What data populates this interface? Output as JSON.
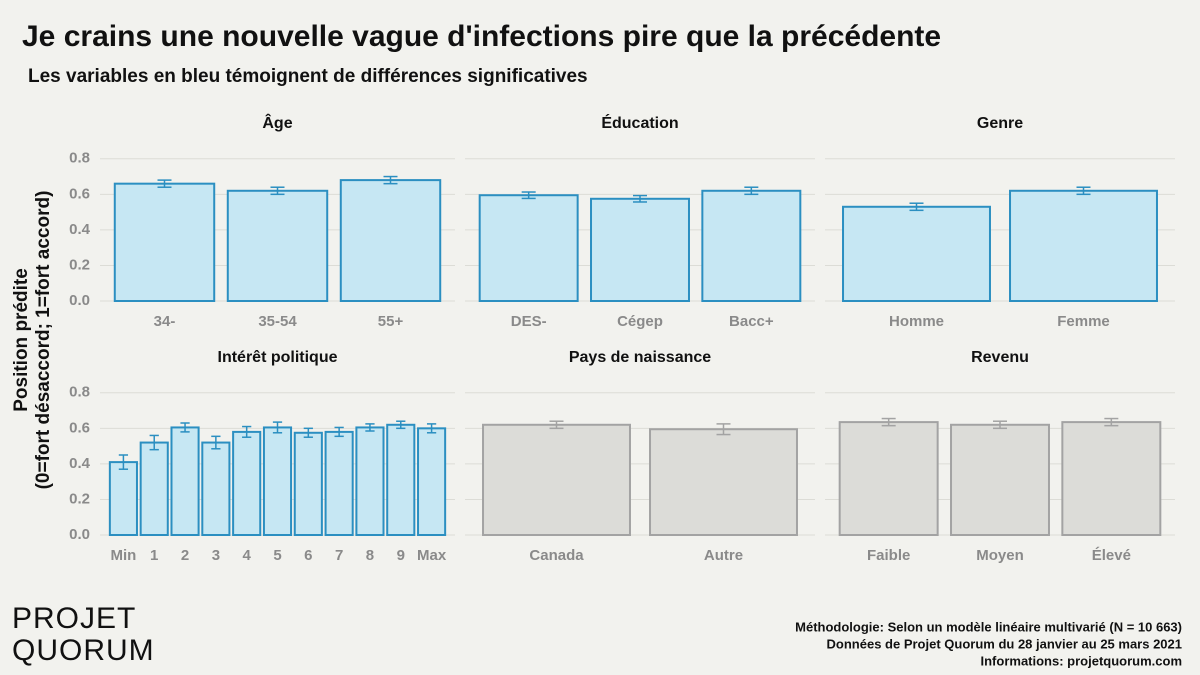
{
  "title": "Je crains une nouvelle vague d'infections pire que la précédente",
  "subtitle": "Les variables en bleu témoignent de différences significatives",
  "ylabel": [
    "Position prédite",
    "(0=fort désaccord; 1=fort accord)"
  ],
  "logo": [
    "PROJET",
    "QUORUM"
  ],
  "notes": [
    "Méthodologie: Selon un modèle linéaire multivarié (N = 10 663)",
    "Données de Projet Quorum du 28 janvier au 25 mars 2021",
    "Informations: projetquorum.com"
  ],
  "chart_data": [
    {
      "type": "bar",
      "title": "Âge",
      "categories": [
        "34-",
        "35-54",
        "55+"
      ],
      "values": [
        0.66,
        0.62,
        0.68
      ],
      "errors": [
        0.02,
        0.02,
        0.02
      ],
      "color": "#c6e7f3",
      "edgecolor": "#2b8fc1",
      "ylim": [
        0,
        0.9
      ],
      "yticks": [
        {
          "value": 0,
          "label": "0.0"
        },
        {
          "value": 0.2,
          "label": "0.2"
        },
        {
          "value": 0.4,
          "label": "0.4"
        },
        {
          "value": 0.6,
          "label": "0.6"
        },
        {
          "value": 0.8,
          "label": "0.8"
        }
      ],
      "grid": true
    },
    {
      "type": "bar",
      "title": "Éducation",
      "categories": [
        "DES-",
        "Cégep",
        "Bacc+"
      ],
      "values": [
        0.595,
        0.575,
        0.62
      ],
      "errors": [
        0.018,
        0.018,
        0.02
      ],
      "color": "#c6e7f3",
      "edgecolor": "#2b8fc1",
      "ylim": [
        0,
        0.9
      ],
      "yticks": [
        0,
        0.2,
        0.4,
        0.6,
        0.8
      ],
      "grid": true
    },
    {
      "type": "bar",
      "title": "Genre",
      "categories": [
        "Homme",
        "Femme"
      ],
      "values": [
        0.53,
        0.62
      ],
      "errors": [
        0.02,
        0.02
      ],
      "color": "#c6e7f3",
      "edgecolor": "#2b8fc1",
      "ylim": [
        0,
        0.9
      ],
      "yticks": [
        0,
        0.2,
        0.4,
        0.6,
        0.8
      ],
      "grid": true
    },
    {
      "type": "bar",
      "title": "Intérêt politique",
      "categories": [
        "Min",
        "1",
        "2",
        "3",
        "4",
        "5",
        "6",
        "7",
        "8",
        "9",
        "Max"
      ],
      "values": [
        0.41,
        0.52,
        0.605,
        0.52,
        0.58,
        0.605,
        0.575,
        0.58,
        0.605,
        0.62,
        0.6
      ],
      "errors": [
        0.04,
        0.04,
        0.025,
        0.035,
        0.03,
        0.03,
        0.025,
        0.025,
        0.02,
        0.02,
        0.025
      ],
      "color": "#c6e7f3",
      "edgecolor": "#2b8fc1",
      "ylim": [
        0,
        0.9
      ],
      "yticks": [
        {
          "value": 0,
          "label": "0.0"
        },
        {
          "value": 0.2,
          "label": "0.2"
        },
        {
          "value": 0.4,
          "label": "0.4"
        },
        {
          "value": 0.6,
          "label": "0.6"
        },
        {
          "value": 0.8,
          "label": "0.8"
        }
      ],
      "grid": true
    },
    {
      "type": "bar",
      "title": "Pays de naissance",
      "categories": [
        "Canada",
        "Autre"
      ],
      "values": [
        0.62,
        0.595
      ],
      "errors": [
        0.02,
        0.03
      ],
      "color": "#dcdcd8",
      "edgecolor": "#a3a3a3",
      "ylim": [
        0,
        0.9
      ],
      "yticks": [
        0,
        0.2,
        0.4,
        0.6,
        0.8
      ],
      "grid": true
    },
    {
      "type": "bar",
      "title": "Revenu",
      "categories": [
        "Faible",
        "Moyen",
        "Élevé"
      ],
      "values": [
        0.635,
        0.62,
        0.635
      ],
      "errors": [
        0.02,
        0.02,
        0.02
      ],
      "color": "#dcdcd8",
      "edgecolor": "#a3a3a3",
      "ylim": [
        0,
        0.9
      ],
      "yticks": [
        0,
        0.2,
        0.4,
        0.6,
        0.8
      ],
      "grid": true
    }
  ]
}
